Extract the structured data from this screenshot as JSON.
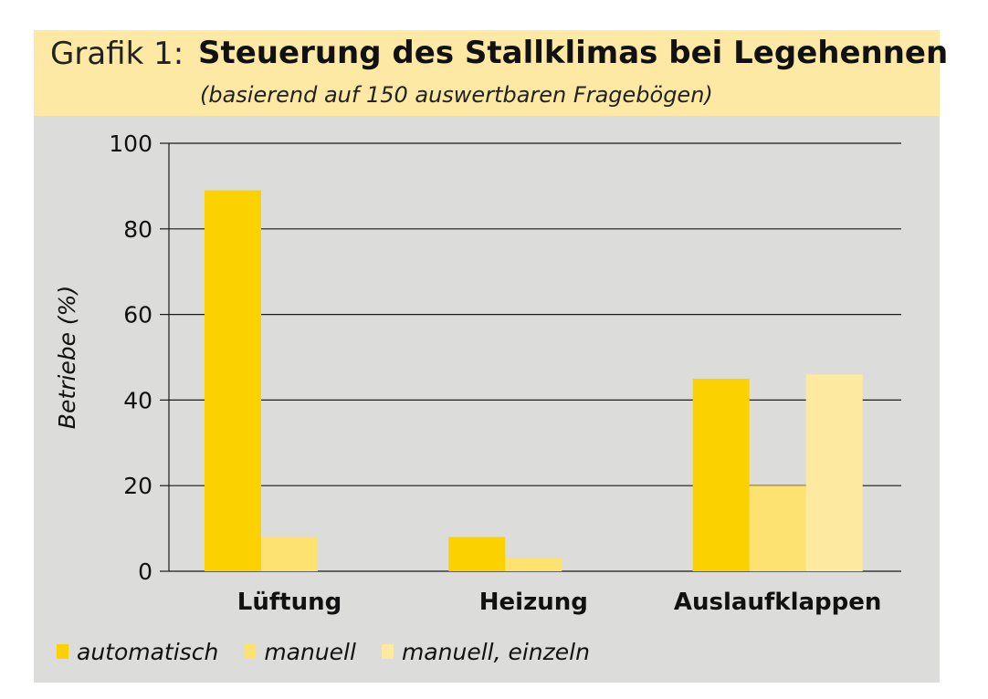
{
  "header": {
    "prefix": "Grafik 1:",
    "title": "Steuerung des Stallklimas bei Legehennen",
    "subtitle": "(basierend auf 150 auswertbaren Fragebögen)"
  },
  "colors": {
    "background": "#dcdcdb",
    "header_bg": "#fde9a3",
    "automatisch": "#fcd100",
    "manuell": "#fde271",
    "manuell_einzeln": "#fdeaa0"
  },
  "chart_data": {
    "type": "bar",
    "title": "Steuerung des Stallklimas bei Legehennen",
    "subtitle": "(basierend auf 150 auswertbaren Fragebögen)",
    "categories": [
      "Lüftung",
      "Heizung",
      "Auslaufklappen"
    ],
    "series": [
      {
        "name": "automatisch",
        "values": [
          89,
          8,
          45
        ],
        "color": "#fcd100"
      },
      {
        "name": "manuell",
        "values": [
          8,
          3,
          20
        ],
        "color": "#fde271"
      },
      {
        "name": "manuell, einzeln",
        "values": [
          0,
          0,
          46
        ],
        "color": "#fdeaa0"
      }
    ],
    "xlabel": "",
    "ylabel": "Betriebe (%)",
    "ylim": [
      0,
      100
    ],
    "yticks": [
      0,
      20,
      40,
      60,
      80,
      100
    ],
    "grid": true,
    "legend": "bottom-left"
  }
}
